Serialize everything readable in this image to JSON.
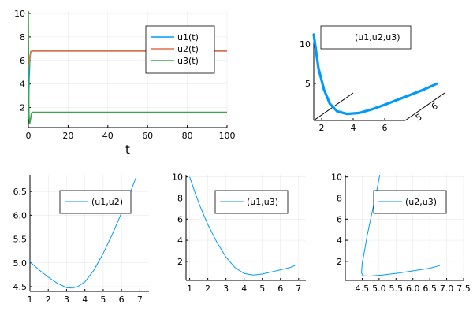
{
  "chart_data": [
    {
      "id": "ts",
      "type": "line",
      "xlabel": "t",
      "ylabel": "",
      "xlim": [
        0,
        100
      ],
      "ylim": [
        0.3,
        10.2
      ],
      "xticks": [
        0,
        20,
        40,
        60,
        80,
        100
      ],
      "yticks": [
        2,
        4,
        6,
        8,
        10
      ],
      "grid": true,
      "legend": "top-right",
      "series": [
        {
          "name": "u1(t)",
          "color": "#009AFA",
          "x": [
            0,
            0.4,
            0.8,
            1.2,
            2,
            3,
            5,
            100
          ],
          "y": [
            1,
            4.5,
            6.3,
            6.75,
            6.8,
            6.8,
            6.8,
            6.8
          ]
        },
        {
          "name": "u2(t)",
          "color": "#E26F46",
          "x": [
            0,
            0.4,
            0.8,
            1.2,
            2,
            3,
            5,
            100
          ],
          "y": [
            5,
            5.6,
            6.3,
            6.75,
            6.8,
            6.8,
            6.8,
            6.8
          ]
        },
        {
          "name": "u3(t)",
          "color": "#3DA44D",
          "x": [
            0,
            0.15,
            0.3,
            0.6,
            1,
            1.5,
            2,
            3,
            100
          ],
          "y": [
            10,
            3.5,
            1.4,
            0.6,
            0.9,
            1.5,
            1.6,
            1.6,
            1.6
          ]
        }
      ]
    },
    {
      "id": "p3d",
      "type": "line",
      "xlabel": "",
      "ylabel": "",
      "legend": "top-right",
      "xticks": [
        2,
        4,
        6
      ],
      "yticks": [
        5,
        6
      ],
      "zticks": [
        5,
        10
      ],
      "series": [
        {
          "name": "(u1,u2,u3)",
          "color": "#009AFA",
          "x": [
            1,
            1.5,
            2,
            2.5,
            3,
            3.5,
            4,
            4.5,
            5,
            5.5,
            6,
            6.5,
            7
          ],
          "y": [
            5,
            4.8,
            4.65,
            4.52,
            4.48,
            4.6,
            4.9,
            5.2,
            5.5,
            5.8,
            6.1,
            6.4,
            6.8
          ],
          "z": [
            10.5,
            6.5,
            4,
            2.4,
            1.5,
            1,
            0.7,
            0.75,
            0.9,
            1.1,
            1.3,
            1.5,
            1.75
          ]
        }
      ]
    },
    {
      "id": "uv12",
      "type": "line",
      "xlabel": "",
      "ylabel": "",
      "xlim": [
        1,
        7.5
      ],
      "ylim": [
        4.4,
        6.85
      ],
      "xticks": [
        1,
        2,
        3,
        4,
        5,
        6,
        7
      ],
      "yticks": [
        4.5,
        5.0,
        5.5,
        6.0,
        6.5
      ],
      "ytick_labels": [
        "4.5",
        "5.0",
        "5.5",
        "6.0",
        "6.5"
      ],
      "grid": true,
      "legend": "top-right",
      "series": [
        {
          "name": "(u1,u2)",
          "color": "#009AFA",
          "x": [
            1,
            1.5,
            2,
            2.5,
            3,
            3.3,
            3.6,
            4,
            4.5,
            5,
            5.5,
            6,
            6.5,
            6.8
          ],
          "y": [
            5.02,
            4.85,
            4.7,
            4.57,
            4.48,
            4.47,
            4.5,
            4.6,
            4.85,
            5.2,
            5.6,
            6.05,
            6.5,
            6.8
          ]
        }
      ]
    },
    {
      "id": "uv13",
      "type": "line",
      "xlabel": "",
      "ylabel": "",
      "xlim": [
        0.8,
        7.4
      ],
      "ylim": [
        0.2,
        10.2
      ],
      "xticks": [
        1,
        2,
        3,
        4,
        5,
        6,
        7
      ],
      "yticks": [
        2,
        4,
        6,
        8,
        10
      ],
      "grid": true,
      "legend": "top-right",
      "series": [
        {
          "name": "(u1,u3)",
          "color": "#009AFA",
          "x": [
            1,
            1.3,
            1.6,
            2,
            2.5,
            3,
            3.5,
            4,
            4.5,
            5,
            5.5,
            6,
            6.5,
            6.8
          ],
          "y": [
            10,
            8.5,
            7.1,
            5.5,
            3.8,
            2.4,
            1.4,
            0.85,
            0.7,
            0.8,
            1.0,
            1.2,
            1.4,
            1.6
          ]
        }
      ]
    },
    {
      "id": "uv23",
      "type": "line",
      "xlabel": "",
      "ylabel": "",
      "xlim": [
        4.0,
        7.5
      ],
      "ylim": [
        0.2,
        10.2
      ],
      "xticks": [
        4.5,
        5.0,
        5.5,
        6.0,
        6.5,
        7.0,
        7.5
      ],
      "xtick_labels": [
        "4.5",
        "5.0",
        "5.5",
        "6.0",
        "6.5",
        "7.0",
        "7.5"
      ],
      "yticks": [
        2,
        4,
        6,
        8,
        10
      ],
      "grid": true,
      "legend": "top-right",
      "series": [
        {
          "name": "(u2,u3)",
          "color": "#009AFA",
          "x": [
            5.02,
            4.95,
            4.85,
            4.75,
            4.65,
            4.57,
            4.5,
            4.48,
            4.52,
            4.7,
            5.1,
            5.6,
            6.1,
            6.5,
            6.8
          ],
          "y": [
            10.2,
            9,
            7.5,
            6,
            4.5,
            3.0,
            1.8,
            0.9,
            0.65,
            0.6,
            0.7,
            0.9,
            1.15,
            1.35,
            1.6
          ]
        }
      ]
    }
  ]
}
